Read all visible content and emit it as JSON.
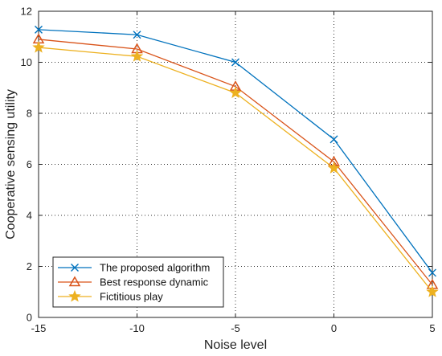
{
  "chart_data": {
    "type": "line",
    "x": [
      -15,
      -10,
      -5,
      0,
      5
    ],
    "xlabel": "Noise level",
    "ylabel": "Cooperative sensing utility",
    "xlim": [
      -15,
      5
    ],
    "ylim": [
      0,
      12
    ],
    "xticks": [
      -15,
      -10,
      -5,
      0,
      5
    ],
    "yticks": [
      0,
      2,
      4,
      6,
      8,
      10,
      12
    ],
    "grid": true,
    "legend_position": "bottom-left",
    "series": [
      {
        "name": "The proposed algorithm",
        "values": [
          11.28,
          11.08,
          10.0,
          6.98,
          1.75
        ],
        "color": "#0072BD",
        "marker": "x"
      },
      {
        "name": "Best response dynamic",
        "values": [
          10.9,
          10.52,
          9.05,
          6.1,
          1.28
        ],
        "color": "#D95319",
        "marker": "triangle"
      },
      {
        "name": "Fictitious play",
        "values": [
          10.58,
          10.23,
          8.8,
          5.85,
          1.0
        ],
        "color": "#EDB120",
        "marker": "star"
      }
    ]
  }
}
